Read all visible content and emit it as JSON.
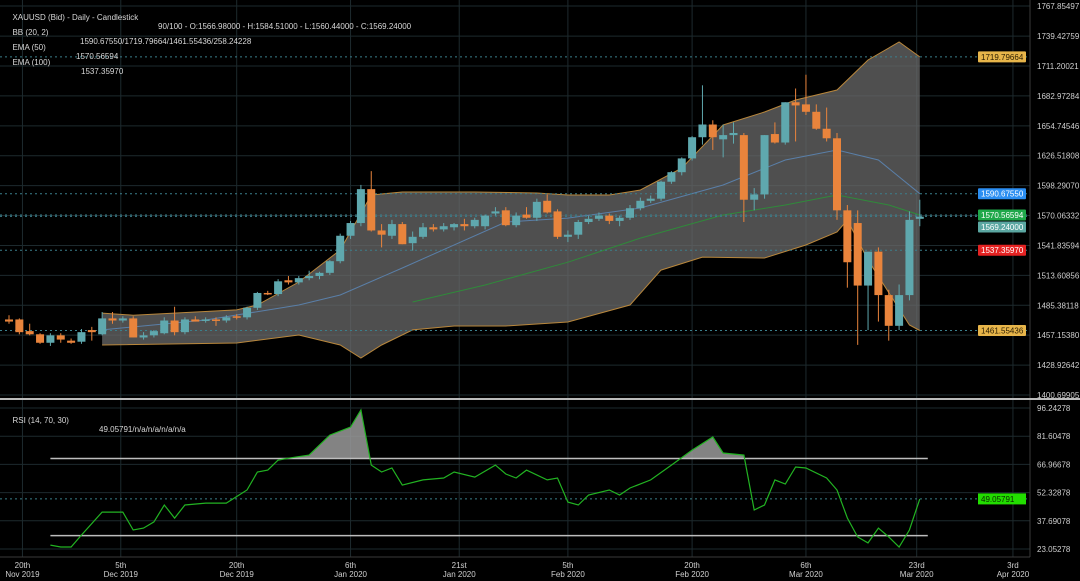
{
  "header": {
    "title": "XAUUSD (Bid) - Daily - Candlestick",
    "ohlc": "90/100 - O:1566.98000 - H:1584.51000 - L:1560.44000 - C:1569.24000",
    "bb_label": "BB (20, 2)",
    "bb_value": "1590.67550/1719.79664/1461.55436/258.24228",
    "ema50_label": "EMA (50)",
    "ema50_value": "1570.56594",
    "ema100_label": "EMA (100)",
    "ema100_value": "1537.35970",
    "rsi_label": "RSI (14, 70, 30)",
    "rsi_value": "49.05791/n/a/n/a/n/a/n/a"
  },
  "colors": {
    "up": "#5fa8ae",
    "down": "#e9843c",
    "band_fill": "#6a6a6a",
    "band_edge": "#b9873c",
    "mid": "#5a7fa8",
    "ema50": "#2f8a3a",
    "rsi": "#22b322",
    "grid": "#1d2a2e"
  },
  "chart_data": [
    {
      "type": "candlestick",
      "title": "XAUUSD (Bid) - Daily - Candlestick",
      "ylim": [
        1400.69905,
        1767.85497
      ],
      "yticks": [
        "1767.85497",
        "1739.42759",
        "1711.20021",
        "1682.97284",
        "1654.74546",
        "1626.51808",
        "1598.29070",
        "1570.06332",
        "1541.83594",
        "1513.60856",
        "1485.38118",
        "1457.15380",
        "1428.92642",
        "1400.69905"
      ],
      "xticks": [
        {
          "i": 1.3,
          "label": [
            "20th",
            "Nov 2019"
          ]
        },
        {
          "i": 10.8,
          "label": [
            "5th",
            "Dec 2019"
          ]
        },
        {
          "i": 22,
          "label": [
            "20th",
            "Dec 2019"
          ]
        },
        {
          "i": 33,
          "label": [
            "6th",
            "Jan 2020"
          ]
        },
        {
          "i": 43.5,
          "label": [
            "21st",
            "Jan 2020"
          ]
        },
        {
          "i": 54,
          "label": [
            "5th",
            "Feb 2020"
          ]
        },
        {
          "i": 66,
          "label": [
            "20th",
            "Feb 2020"
          ]
        },
        {
          "i": 77,
          "label": [
            "6th",
            "Mar 2020"
          ]
        },
        {
          "i": 87.7,
          "label": [
            "23rd",
            "Mar 2020"
          ]
        },
        {
          "i": 97,
          "label": [
            "3rd",
            "Apr 2020"
          ]
        }
      ],
      "ohlc": [
        [
          1472,
          1476,
          1468,
          1470
        ],
        [
          1472,
          1473,
          1458,
          1460
        ],
        [
          1461,
          1468,
          1457,
          1458
        ],
        [
          1458,
          1459,
          1449,
          1450
        ],
        [
          1450,
          1459,
          1447,
          1457
        ],
        [
          1457,
          1459,
          1450,
          1453
        ],
        [
          1452,
          1454,
          1449,
          1450
        ],
        [
          1451,
          1463,
          1449,
          1460
        ],
        [
          1462,
          1465,
          1452,
          1460
        ],
        [
          1458,
          1479,
          1457,
          1473
        ],
        [
          1473,
          1479,
          1468,
          1471
        ],
        [
          1471,
          1475,
          1469,
          1473
        ],
        [
          1473,
          1475,
          1455,
          1455
        ],
        [
          1455,
          1460,
          1453,
          1457
        ],
        [
          1457,
          1462,
          1455,
          1461
        ],
        [
          1459,
          1474,
          1458,
          1471
        ],
        [
          1471,
          1484,
          1457,
          1460
        ],
        [
          1460,
          1474,
          1458,
          1472
        ],
        [
          1472,
          1475,
          1470,
          1470
        ],
        [
          1471,
          1474,
          1469,
          1472
        ],
        [
          1472,
          1474,
          1466,
          1471
        ],
        [
          1471,
          1476,
          1469,
          1474
        ],
        [
          1475,
          1477,
          1472,
          1474
        ],
        [
          1474,
          1484,
          1472,
          1483
        ],
        [
          1483,
          1498,
          1481,
          1497
        ],
        [
          1497,
          1499,
          1495,
          1496
        ],
        [
          1496,
          1510,
          1494,
          1508
        ],
        [
          1509,
          1513,
          1505,
          1507
        ],
        [
          1507,
          1513,
          1505,
          1511
        ],
        [
          1511,
          1518,
          1509,
          1513
        ],
        [
          1513,
          1517,
          1510,
          1516
        ],
        [
          1516,
          1528,
          1514,
          1527
        ],
        [
          1527,
          1553,
          1525,
          1551
        ],
        [
          1551,
          1565,
          1548,
          1563
        ],
        [
          1563,
          1599,
          1560,
          1595
        ],
        [
          1595,
          1612,
          1555,
          1556
        ],
        [
          1556,
          1562,
          1540,
          1552
        ],
        [
          1551,
          1566,
          1548,
          1562
        ],
        [
          1562,
          1564,
          1543,
          1543
        ],
        [
          1544,
          1555,
          1537,
          1550
        ],
        [
          1550,
          1563,
          1548,
          1559
        ],
        [
          1559,
          1562,
          1555,
          1557
        ],
        [
          1557,
          1563,
          1555,
          1560
        ],
        [
          1559,
          1563,
          1556,
          1562
        ],
        [
          1562,
          1567,
          1556,
          1560
        ],
        [
          1560,
          1568,
          1558,
          1566
        ],
        [
          1560,
          1571,
          1557,
          1570
        ],
        [
          1572,
          1578,
          1570,
          1574
        ],
        [
          1575,
          1578,
          1560,
          1561
        ],
        [
          1561,
          1573,
          1559,
          1570
        ],
        [
          1571,
          1578,
          1567,
          1568
        ],
        [
          1568,
          1586,
          1565,
          1583
        ],
        [
          1584,
          1590,
          1572,
          1573
        ],
        [
          1574,
          1576,
          1548,
          1550
        ],
        [
          1550,
          1556,
          1545,
          1552
        ],
        [
          1552,
          1566,
          1548,
          1564
        ],
        [
          1564,
          1570,
          1562,
          1567
        ],
        [
          1567,
          1573,
          1565,
          1570
        ],
        [
          1570,
          1572,
          1562,
          1565
        ],
        [
          1565,
          1570,
          1560,
          1568
        ],
        [
          1568,
          1580,
          1566,
          1577
        ],
        [
          1577,
          1587,
          1575,
          1584
        ],
        [
          1584,
          1589,
          1582,
          1586
        ],
        [
          1586,
          1603,
          1584,
          1602
        ],
        [
          1602,
          1612,
          1600,
          1611
        ],
        [
          1611,
          1625,
          1608,
          1624
        ],
        [
          1624,
          1645,
          1622,
          1644
        ],
        [
          1644,
          1693,
          1637,
          1656
        ],
        [
          1656,
          1660,
          1632,
          1644
        ],
        [
          1642,
          1656,
          1625,
          1646
        ],
        [
          1646,
          1658,
          1638,
          1648
        ],
        [
          1646,
          1648,
          1564,
          1585
        ],
        [
          1585,
          1596,
          1575,
          1590
        ],
        [
          1590,
          1646,
          1586,
          1646
        ],
        [
          1647,
          1658,
          1638,
          1639
        ],
        [
          1639,
          1677,
          1637,
          1677
        ],
        [
          1677,
          1690,
          1640,
          1674
        ],
        [
          1675,
          1703,
          1665,
          1668
        ],
        [
          1668,
          1675,
          1651,
          1652
        ],
        [
          1652,
          1672,
          1640,
          1643
        ],
        [
          1643,
          1648,
          1566,
          1575
        ],
        [
          1575,
          1580,
          1502,
          1526
        ],
        [
          1563,
          1575,
          1448,
          1504
        ],
        [
          1504,
          1535,
          1462,
          1536
        ],
        [
          1536,
          1540,
          1470,
          1495
        ],
        [
          1495,
          1500,
          1452,
          1466
        ],
        [
          1466,
          1505,
          1462,
          1495
        ],
        [
          1495,
          1574,
          1490,
          1566
        ],
        [
          1567,
          1585,
          1560,
          1569
        ]
      ],
      "bb_upper": [
        [
          9,
          1478
        ],
        [
          12,
          1476
        ],
        [
          22,
          1481
        ],
        [
          24,
          1485.6
        ],
        [
          28,
          1507.4
        ],
        [
          32,
          1537.6
        ],
        [
          35,
          1589.5
        ],
        [
          38,
          1592.3
        ],
        [
          45,
          1592.3
        ],
        [
          51,
          1591.4
        ],
        [
          54,
          1589.5
        ],
        [
          58,
          1589.5
        ],
        [
          61,
          1594.2
        ],
        [
          65,
          1614.9
        ],
        [
          69,
          1655.5
        ],
        [
          73,
          1667.8
        ],
        [
          76,
          1679.1
        ],
        [
          80,
          1688.6
        ],
        [
          83,
          1716.9
        ],
        [
          86,
          1733.9
        ],
        [
          88,
          1719.8
        ]
      ],
      "bb_lower": [
        [
          9,
          1447.9
        ],
        [
          22,
          1449.8
        ],
        [
          28,
          1457.3
        ],
        [
          32,
          1447.9
        ],
        [
          34,
          1435.6
        ],
        [
          36,
          1447.9
        ],
        [
          39,
          1462.1
        ],
        [
          43,
          1465.8
        ],
        [
          48,
          1465.8
        ],
        [
          54,
          1469.6
        ],
        [
          60,
          1485.6
        ],
        [
          63,
          1518.6
        ],
        [
          67,
          1530.9
        ],
        [
          73,
          1530
        ],
        [
          77,
          1542.3
        ],
        [
          80,
          1554.5
        ],
        [
          81,
          1565.9
        ],
        [
          83,
          1528.1
        ],
        [
          87,
          1466.8
        ],
        [
          88,
          1461.55
        ]
      ],
      "bb_mid": [
        [
          9,
          1462.1
        ],
        [
          19,
          1471.5
        ],
        [
          28,
          1485.6
        ],
        [
          32,
          1495.1
        ],
        [
          38,
          1520.6
        ],
        [
          48,
          1564
        ],
        [
          54,
          1567.7
        ],
        [
          61,
          1577.2
        ],
        [
          69,
          1598.9
        ],
        [
          75,
          1622.5
        ],
        [
          80,
          1631.9
        ],
        [
          84,
          1622.5
        ],
        [
          88,
          1590.68
        ]
      ],
      "ema50": [
        [
          39,
          1488.5
        ],
        [
          46,
          1504.5
        ],
        [
          54,
          1526
        ],
        [
          61,
          1548.8
        ],
        [
          69,
          1570.6
        ],
        [
          75,
          1580
        ],
        [
          80,
          1589.5
        ],
        [
          85,
          1580
        ],
        [
          88,
          1570.57
        ]
      ],
      "badges": [
        {
          "label": "1719.79664",
          "value": 1719.79664,
          "bg": "#e7b54a",
          "fg": "#2a1c00"
        },
        {
          "label": "1590.67550",
          "value": 1590.6755,
          "bg": "#2b8ef2",
          "fg": "#ffffff"
        },
        {
          "label": "1570.56594",
          "value": 1570.56594,
          "bg": "#1fa84a",
          "fg": "#ffffff"
        },
        {
          "label": "1569.24000",
          "value": 1569.24,
          "bg": "#5ba7a2",
          "fg": "#ffffff"
        },
        {
          "label": "1537.35970",
          "value": 1537.3597,
          "bg": "#e52222",
          "fg": "#ffffff"
        },
        {
          "label": "1461.55436",
          "value": 1461.55436,
          "bg": "#e7b54a",
          "fg": "#2a1c00"
        }
      ]
    },
    {
      "type": "line",
      "title": "RSI (14, 70, 30)",
      "ylim": [
        23.05278,
        96.24278
      ],
      "yticks": [
        "96.24278",
        "81.60478",
        "66.96678",
        "52.32878",
        "37.69078",
        "23.05278"
      ],
      "levels": [
        70,
        30
      ],
      "values": [
        [
          4,
          25.1
        ],
        [
          5,
          24.1
        ],
        [
          6,
          24.1
        ],
        [
          7,
          30.3
        ],
        [
          9,
          42.2
        ],
        [
          11,
          42.2
        ],
        [
          12,
          32.9
        ],
        [
          13,
          33.9
        ],
        [
          14,
          37.1
        ],
        [
          15,
          45.9
        ],
        [
          16,
          39.1
        ],
        [
          17,
          45.9
        ],
        [
          19,
          46.9
        ],
        [
          21,
          46.9
        ],
        [
          23,
          53.7
        ],
        [
          24,
          63.0
        ],
        [
          25,
          64.0
        ],
        [
          26,
          69.2
        ],
        [
          27,
          70.2
        ],
        [
          29,
          71.8
        ],
        [
          31,
          82.2
        ],
        [
          33,
          86.4
        ],
        [
          34,
          95.2
        ],
        [
          35,
          66.6
        ],
        [
          36,
          63.0
        ],
        [
          37,
          65.1
        ],
        [
          38,
          56.2
        ],
        [
          40,
          58.9
        ],
        [
          42,
          59.9
        ],
        [
          43,
          63.0
        ],
        [
          45,
          60.4
        ],
        [
          47,
          66.6
        ],
        [
          48,
          62.0
        ],
        [
          49,
          59.9
        ],
        [
          50,
          64.0
        ],
        [
          52,
          58.9
        ],
        [
          53,
          59.9
        ],
        [
          54,
          47.4
        ],
        [
          55,
          45.9
        ],
        [
          56,
          51.1
        ],
        [
          58,
          53.7
        ],
        [
          59,
          51.1
        ],
        [
          60,
          54.7
        ],
        [
          62,
          58.9
        ],
        [
          64,
          66.6
        ],
        [
          66,
          74.4
        ],
        [
          68,
          81.2
        ],
        [
          69,
          72.9
        ],
        [
          71,
          71.8
        ],
        [
          72,
          43.3
        ],
        [
          73,
          45.9
        ],
        [
          74,
          58.9
        ],
        [
          75,
          56.8
        ],
        [
          76,
          65.6
        ],
        [
          77,
          65.1
        ],
        [
          79,
          59.9
        ],
        [
          80,
          53.7
        ],
        [
          81,
          39.1
        ],
        [
          82,
          29.3
        ],
        [
          83,
          26.2
        ],
        [
          84,
          33.9
        ],
        [
          85,
          29.3
        ],
        [
          86,
          24.1
        ],
        [
          87,
          32.9
        ],
        [
          88,
          49.06
        ]
      ],
      "badge": {
        "label": "49.05791",
        "value": 49.05791,
        "bg": "#22dd00",
        "fg": "#0a2a00"
      }
    }
  ]
}
